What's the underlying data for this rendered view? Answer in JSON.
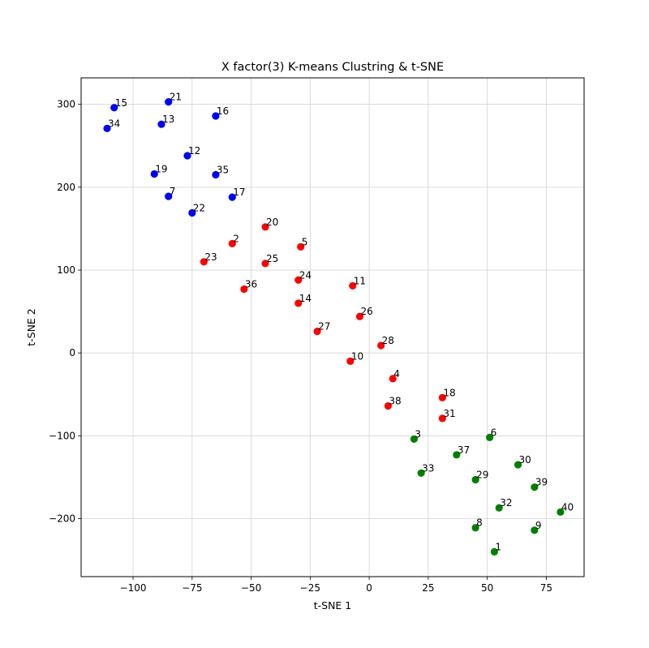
{
  "chart_data": {
    "type": "scatter",
    "title": "X factor(3) K-means Clustring & t-SNE",
    "xlabel": "t-SNE 1",
    "ylabel": "t-SNE 2",
    "xlim": [
      -122,
      91
    ],
    "ylim": [
      -270,
      332
    ],
    "xticks": [
      -100,
      -75,
      -50,
      -25,
      0,
      25,
      50,
      75
    ],
    "yticks": [
      -200,
      -100,
      0,
      100,
      200,
      300
    ],
    "xtick_labels": [
      "−100",
      "−75",
      "−50",
      "−25",
      "0",
      "25",
      "50",
      "75"
    ],
    "ytick_labels": [
      "−200",
      "−100",
      "0",
      "100",
      "200",
      "300"
    ],
    "grid": true,
    "colors": {
      "0": "#0000ff",
      "1": "#ff0000",
      "2": "#008000"
    },
    "points": [
      {
        "label": "1",
        "x": 53,
        "y": -240,
        "cluster": 2
      },
      {
        "label": "2",
        "x": -58,
        "y": 132,
        "cluster": 1
      },
      {
        "label": "3",
        "x": 19,
        "y": -104,
        "cluster": 2
      },
      {
        "label": "4",
        "x": 10,
        "y": -31,
        "cluster": 1
      },
      {
        "label": "5",
        "x": -29,
        "y": 128,
        "cluster": 1
      },
      {
        "label": "6",
        "x": 51,
        "y": -102,
        "cluster": 2
      },
      {
        "label": "7",
        "x": -85,
        "y": 189,
        "cluster": 0
      },
      {
        "label": "8",
        "x": 45,
        "y": -211,
        "cluster": 2
      },
      {
        "label": "9",
        "x": 70,
        "y": -214,
        "cluster": 2
      },
      {
        "label": "10",
        "x": -8,
        "y": -10,
        "cluster": 1
      },
      {
        "label": "11",
        "x": -7,
        "y": 81,
        "cluster": 1
      },
      {
        "label": "12",
        "x": -77,
        "y": 238,
        "cluster": 0
      },
      {
        "label": "13",
        "x": -88,
        "y": 276,
        "cluster": 0
      },
      {
        "label": "14",
        "x": -30,
        "y": 60,
        "cluster": 1
      },
      {
        "label": "15",
        "x": -108,
        "y": 296,
        "cluster": 0
      },
      {
        "label": "16",
        "x": -65,
        "y": 286,
        "cluster": 0
      },
      {
        "label": "17",
        "x": -58,
        "y": 188,
        "cluster": 0
      },
      {
        "label": "18",
        "x": 31,
        "y": -54,
        "cluster": 1
      },
      {
        "label": "19",
        "x": -91,
        "y": 216,
        "cluster": 0
      },
      {
        "label": "20",
        "x": -44,
        "y": 152,
        "cluster": 1
      },
      {
        "label": "21",
        "x": -85,
        "y": 303,
        "cluster": 0
      },
      {
        "label": "22",
        "x": -75,
        "y": 169,
        "cluster": 0
      },
      {
        "label": "23",
        "x": -70,
        "y": 110,
        "cluster": 1
      },
      {
        "label": "24",
        "x": -30,
        "y": 88,
        "cluster": 1
      },
      {
        "label": "25",
        "x": -44,
        "y": 108,
        "cluster": 1
      },
      {
        "label": "26",
        "x": -4,
        "y": 44,
        "cluster": 1
      },
      {
        "label": "27",
        "x": -22,
        "y": 26,
        "cluster": 1
      },
      {
        "label": "28",
        "x": 5,
        "y": 9,
        "cluster": 1
      },
      {
        "label": "29",
        "x": 45,
        "y": -153,
        "cluster": 2
      },
      {
        "label": "30",
        "x": 63,
        "y": -135,
        "cluster": 2
      },
      {
        "label": "31",
        "x": 31,
        "y": -79,
        "cluster": 1
      },
      {
        "label": "32",
        "x": 55,
        "y": -187,
        "cluster": 2
      },
      {
        "label": "33",
        "x": 22,
        "y": -145,
        "cluster": 2
      },
      {
        "label": "34",
        "x": -111,
        "y": 271,
        "cluster": 0
      },
      {
        "label": "35",
        "x": -65,
        "y": 215,
        "cluster": 0
      },
      {
        "label": "36",
        "x": -53,
        "y": 77,
        "cluster": 1
      },
      {
        "label": "37",
        "x": 37,
        "y": -123,
        "cluster": 2
      },
      {
        "label": "38",
        "x": 8,
        "y": -64,
        "cluster": 1
      },
      {
        "label": "39",
        "x": 70,
        "y": -162,
        "cluster": 2
      },
      {
        "label": "40",
        "x": 81,
        "y": -192,
        "cluster": 2
      }
    ]
  }
}
